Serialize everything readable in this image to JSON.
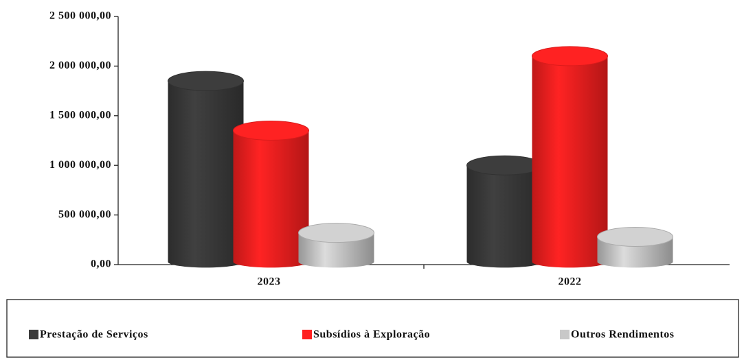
{
  "chart_data": {
    "type": "bar3d",
    "categories": [
      "2023",
      "2022"
    ],
    "series": [
      {
        "name": "Prestação de Serviços",
        "color": "#3a3a3a",
        "values": [
          1850000,
          1000000
        ]
      },
      {
        "name": "Subsídios à Exploração",
        "color": "#ff2020",
        "values": [
          1350000,
          2100000
        ]
      },
      {
        "name": "Outros Rendimentos",
        "color": "#c8c8c8",
        "values": [
          320000,
          280000
        ]
      }
    ],
    "ylim": [
      0,
      2500000
    ],
    "yticks": [
      {
        "value": 0,
        "label": "0,00"
      },
      {
        "value": 500000,
        "label": "500 000,00"
      },
      {
        "value": 1000000,
        "label": "1 000 000,00"
      },
      {
        "value": 1500000,
        "label": "1 500 000,00"
      },
      {
        "value": 2000000,
        "label": "2 000 000,00"
      },
      {
        "value": 2500000,
        "label": "2 500 000,00"
      }
    ],
    "legend": "bottom"
  }
}
